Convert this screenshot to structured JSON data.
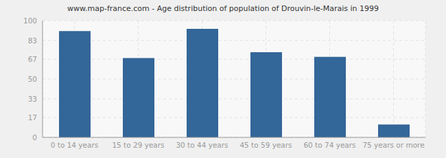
{
  "chart_data": {
    "type": "bar",
    "title": "www.map-france.com - Age distribution of population of Drouvin-le-Marais in 1999",
    "categories": [
      "0 to 14 years",
      "15 to 29 years",
      "30 to 44 years",
      "45 to 59 years",
      "60 to 74 years",
      "75 years or more"
    ],
    "values": [
      91,
      68,
      93,
      73,
      69,
      11
    ],
    "color": "#336699",
    "ylim": [
      0,
      100
    ],
    "yticks": [
      0,
      17,
      33,
      50,
      67,
      83,
      100
    ],
    "grid": true
  }
}
